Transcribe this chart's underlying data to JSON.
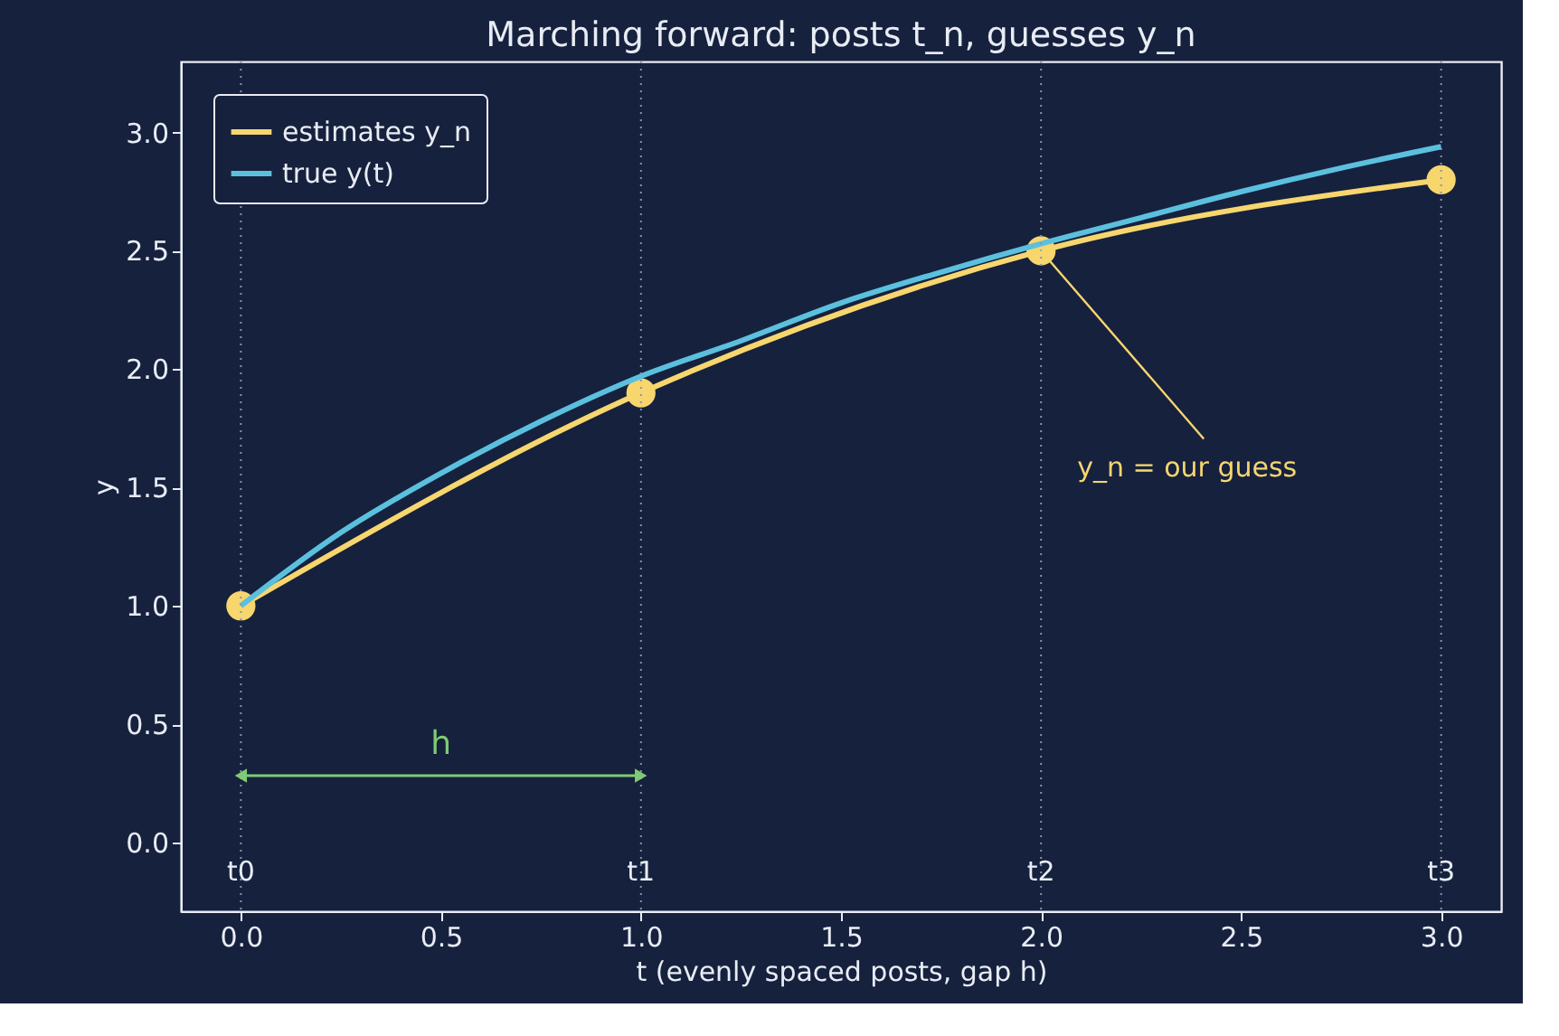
{
  "chart_data": {
    "type": "line",
    "title": "Marching forward: posts t_n, guesses y_n",
    "xlabel": "t (evenly spaced posts, gap h)",
    "ylabel": "y",
    "xlim": [
      -0.15,
      3.15
    ],
    "ylim": [
      -0.29,
      3.3
    ],
    "xticks": [
      {
        "value": 0,
        "label": "0.0"
      },
      0.5,
      {
        "value": 1,
        "label": "1.0"
      },
      1.5,
      {
        "value": 2,
        "label": "2.0"
      },
      2.5,
      {
        "value": 3,
        "label": "3.0"
      }
    ],
    "yticks": [
      {
        "value": 0,
        "label": "0.0"
      },
      0.5,
      {
        "value": 1,
        "label": "1.0"
      },
      1.5,
      {
        "value": 2,
        "label": "2.0"
      },
      2.5,
      {
        "value": 3,
        "label": "3.0"
      }
    ],
    "grid": false,
    "legend": "top left",
    "marker": "circle",
    "line_style": "solid",
    "series": [
      {
        "name": "estimates y_n",
        "color": "#f7d66e",
        "x": [
          0,
          1,
          2,
          3
        ],
        "values": [
          1.0,
          1.9,
          2.5,
          2.8
        ]
      },
      {
        "name": "true y(t)",
        "color": "#5bc0de",
        "marker": "none",
        "x": [
          0,
          0.25,
          0.5,
          0.75,
          1,
          1.25,
          1.5,
          1.75,
          2,
          2.25,
          2.5,
          2.75,
          3
        ],
        "values": [
          1.0,
          1.31,
          1.56,
          1.78,
          1.97,
          2.12,
          2.28,
          2.41,
          2.53,
          2.64,
          2.75,
          2.85,
          2.94
        ]
      }
    ],
    "ref_lines": [
      {
        "axis": "x",
        "value": 0,
        "label": "t0",
        "color": "#8a93a8",
        "line_style": "dotted"
      },
      {
        "axis": "x",
        "value": 1,
        "label": "t1",
        "color": "#8a93a8",
        "line_style": "dotted"
      },
      {
        "axis": "x",
        "value": 2,
        "label": "t2",
        "color": "#8a93a8",
        "line_style": "dotted"
      },
      {
        "axis": "x",
        "value": 3,
        "label": "t3",
        "color": "#8a93a8",
        "line_style": "dotted"
      }
    ],
    "annotations": [
      {
        "text": "y_n = our guess",
        "x": 2,
        "y": 2.5
      },
      "h"
    ]
  }
}
